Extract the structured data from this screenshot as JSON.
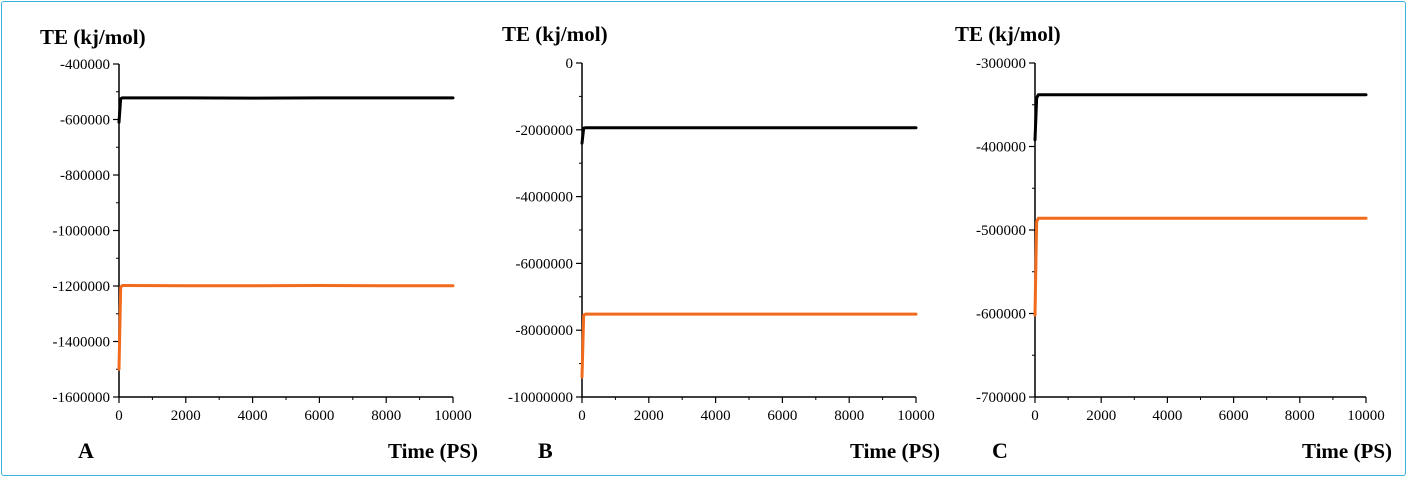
{
  "colors": {
    "frame": "#3ab0dc",
    "series_black": "#000000",
    "series_orange": "#f26b1d"
  },
  "chart_data": [
    {
      "type": "line",
      "panel_label": "A",
      "ylabel": "TE (kj/mol)",
      "xlabel": "Time (PS)",
      "xlim": [
        0,
        10000
      ],
      "ylim": [
        -1600000,
        -400000
      ],
      "xticks": [
        0,
        2000,
        4000,
        6000,
        8000,
        10000
      ],
      "yticks": [
        -400000,
        -600000,
        -800000,
        -1000000,
        -1200000,
        -1400000,
        -1600000
      ],
      "series": [
        {
          "color": "#000000",
          "x": [
            0,
            50,
            100,
            2000,
            4000,
            6000,
            8000,
            10000
          ],
          "y": [
            -610000,
            -525000,
            -522000,
            -522000,
            -523000,
            -522000,
            -522000,
            -522000
          ]
        },
        {
          "color": "#f26b1d",
          "x": [
            0,
            50,
            100,
            2000,
            4000,
            6000,
            8000,
            10000
          ],
          "y": [
            -1500000,
            -1205000,
            -1198000,
            -1199000,
            -1199000,
            -1198000,
            -1199000,
            -1199000
          ]
        }
      ]
    },
    {
      "type": "line",
      "panel_label": "B",
      "ylabel": "TE (kj/mol)",
      "xlabel": "Time (PS)",
      "xlim": [
        0,
        10000
      ],
      "ylim": [
        -10000000,
        0
      ],
      "xticks": [
        0,
        2000,
        4000,
        6000,
        8000,
        10000
      ],
      "yticks": [
        0,
        -2000000,
        -4000000,
        -6000000,
        -8000000,
        -10000000
      ],
      "series": [
        {
          "color": "#000000",
          "x": [
            0,
            50,
            100,
            2000,
            4000,
            6000,
            8000,
            10000
          ],
          "y": [
            -2400000,
            -1950000,
            -1940000,
            -1940000,
            -1940000,
            -1940000,
            -1940000,
            -1940000
          ]
        },
        {
          "color": "#f26b1d",
          "x": [
            0,
            50,
            100,
            2000,
            4000,
            6000,
            8000,
            10000
          ],
          "y": [
            -9400000,
            -7550000,
            -7520000,
            -7520000,
            -7520000,
            -7520000,
            -7520000,
            -7520000
          ]
        }
      ]
    },
    {
      "type": "line",
      "panel_label": "C",
      "ylabel": "TE (kj/mol)",
      "xlabel": "Time (PS)",
      "xlim": [
        0,
        10000
      ],
      "ylim": [
        -700000,
        -300000
      ],
      "xticks": [
        0,
        2000,
        4000,
        6000,
        8000,
        10000
      ],
      "yticks": [
        -300000,
        -400000,
        -500000,
        -600000,
        -700000
      ],
      "series": [
        {
          "color": "#000000",
          "x": [
            0,
            50,
            100,
            2000,
            4000,
            6000,
            8000,
            10000
          ],
          "y": [
            -392000,
            -342000,
            -338000,
            -338000,
            -338000,
            -338000,
            -338000,
            -338000
          ]
        },
        {
          "color": "#f26b1d",
          "x": [
            0,
            50,
            100,
            2000,
            4000,
            6000,
            8000,
            10000
          ],
          "y": [
            -602000,
            -490000,
            -486000,
            -486000,
            -486000,
            -486000,
            -486000,
            -486000
          ]
        }
      ]
    }
  ]
}
